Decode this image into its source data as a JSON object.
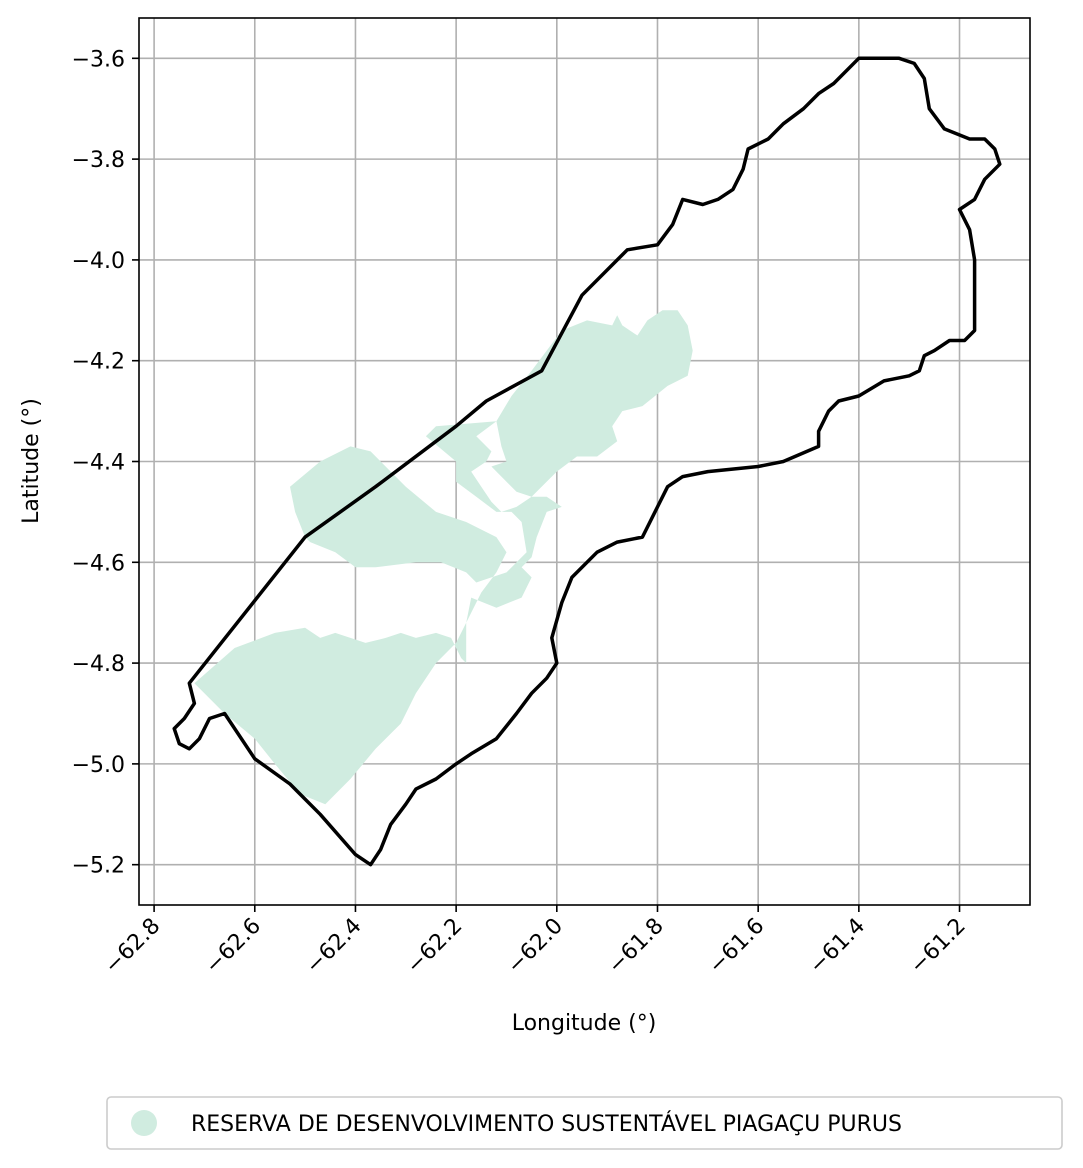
{
  "chart_data": {
    "type": "map",
    "xlabel": "Longitude (°)",
    "ylabel": "Latitude (°)",
    "xlim": [
      -62.83,
      -61.06
    ],
    "ylim": [
      -5.28,
      -3.52
    ],
    "grid": true,
    "x_ticks": [
      {
        "value": -62.8,
        "label": "−62.8"
      },
      {
        "value": -62.6,
        "label": "−62.6"
      },
      {
        "value": -62.4,
        "label": "−62.4"
      },
      {
        "value": -62.2,
        "label": "−62.2"
      },
      {
        "value": -62.0,
        "label": "−62.0"
      },
      {
        "value": -61.8,
        "label": "−61.8"
      },
      {
        "value": -61.6,
        "label": "−61.6"
      },
      {
        "value": -61.4,
        "label": "−61.4"
      },
      {
        "value": -61.2,
        "label": "−61.2"
      }
    ],
    "y_ticks": [
      {
        "value": -3.6,
        "label": "−3.6"
      },
      {
        "value": -3.8,
        "label": "−3.8"
      },
      {
        "value": -4.0,
        "label": "−4.0"
      },
      {
        "value": -4.2,
        "label": "−4.2"
      },
      {
        "value": -4.4,
        "label": "−4.4"
      },
      {
        "value": -4.6,
        "label": "−4.6"
      },
      {
        "value": -4.8,
        "label": "−4.8"
      },
      {
        "value": -5.0,
        "label": "−5.0"
      },
      {
        "value": -5.2,
        "label": "−5.2"
      }
    ],
    "legend": {
      "placement": "bottom-center",
      "entries": [
        {
          "label": "RESERVA DE DESENVOLVIMENTO SUSTENTÁVEL PIAGAÇU PURUS",
          "color": "#d0ece0",
          "marker": "circle"
        }
      ]
    },
    "colors": {
      "fill": "#d0ece0",
      "outline": "#000000",
      "grid": "#b0b0b0"
    },
    "reserve_polygon": [
      [
        -62.72,
        -4.84
      ],
      [
        -62.64,
        -4.77
      ],
      [
        -62.56,
        -4.74
      ],
      [
        -62.5,
        -4.73
      ],
      [
        -62.47,
        -4.75
      ],
      [
        -62.44,
        -4.74
      ],
      [
        -62.41,
        -4.75
      ],
      [
        -62.38,
        -4.76
      ],
      [
        -62.34,
        -4.75
      ],
      [
        -62.31,
        -4.74
      ],
      [
        -62.28,
        -4.75
      ],
      [
        -62.24,
        -4.74
      ],
      [
        -62.21,
        -4.75
      ],
      [
        -62.19,
        -4.79
      ],
      [
        -62.18,
        -4.8
      ],
      [
        -62.18,
        -4.72
      ],
      [
        -62.17,
        -4.67
      ],
      [
        -62.12,
        -4.69
      ],
      [
        -62.07,
        -4.67
      ],
      [
        -62.05,
        -4.63
      ],
      [
        -62.07,
        -4.61
      ],
      [
        -62.05,
        -4.59
      ],
      [
        -62.04,
        -4.55
      ],
      [
        -62.02,
        -4.5
      ],
      [
        -61.99,
        -4.49
      ],
      [
        -62.02,
        -4.47
      ],
      [
        -62.05,
        -4.47
      ],
      [
        -62.08,
        -4.46
      ],
      [
        -62.1,
        -4.44
      ],
      [
        -62.13,
        -4.41
      ],
      [
        -62.1,
        -4.4
      ],
      [
        -62.11,
        -4.37
      ],
      [
        -62.12,
        -4.32
      ],
      [
        -62.09,
        -4.27
      ],
      [
        -62.05,
        -4.22
      ],
      [
        -62.02,
        -4.18
      ],
      [
        -61.99,
        -4.14
      ],
      [
        -61.94,
        -4.12
      ],
      [
        -61.89,
        -4.13
      ],
      [
        -61.88,
        -4.11
      ],
      [
        -61.87,
        -4.13
      ],
      [
        -61.84,
        -4.15
      ],
      [
        -61.82,
        -4.12
      ],
      [
        -61.79,
        -4.1
      ],
      [
        -61.76,
        -4.1
      ],
      [
        -61.74,
        -4.13
      ],
      [
        -61.73,
        -4.18
      ],
      [
        -61.74,
        -4.23
      ],
      [
        -61.78,
        -4.25
      ],
      [
        -61.83,
        -4.29
      ],
      [
        -61.87,
        -4.3
      ],
      [
        -61.89,
        -4.33
      ],
      [
        -61.88,
        -4.36
      ],
      [
        -61.92,
        -4.39
      ],
      [
        -61.96,
        -4.39
      ],
      [
        -62.0,
        -4.42
      ],
      [
        -62.05,
        -4.47
      ],
      [
        -62.08,
        -4.49
      ],
      [
        -62.11,
        -4.5
      ],
      [
        -62.13,
        -4.48
      ],
      [
        -62.15,
        -4.45
      ],
      [
        -62.17,
        -4.42
      ],
      [
        -62.14,
        -4.4
      ],
      [
        -62.13,
        -4.38
      ],
      [
        -62.16,
        -4.35
      ],
      [
        -62.12,
        -4.32
      ],
      [
        -62.24,
        -4.33
      ],
      [
        -62.26,
        -4.35
      ],
      [
        -62.2,
        -4.4
      ],
      [
        -62.2,
        -4.44
      ],
      [
        -62.16,
        -4.47
      ],
      [
        -62.12,
        -4.5
      ],
      [
        -62.09,
        -4.5
      ],
      [
        -62.07,
        -4.52
      ],
      [
        -62.06,
        -4.58
      ],
      [
        -62.1,
        -4.62
      ],
      [
        -62.13,
        -4.63
      ],
      [
        -62.16,
        -4.64
      ],
      [
        -62.18,
        -4.62
      ],
      [
        -62.23,
        -4.6
      ],
      [
        -62.28,
        -4.6
      ],
      [
        -62.36,
        -4.61
      ],
      [
        -62.4,
        -4.61
      ],
      [
        -62.44,
        -4.58
      ],
      [
        -62.49,
        -4.56
      ],
      [
        -62.5,
        -4.55
      ],
      [
        -62.52,
        -4.5
      ],
      [
        -62.53,
        -4.45
      ],
      [
        -62.47,
        -4.4
      ],
      [
        -62.41,
        -4.37
      ],
      [
        -62.37,
        -4.38
      ],
      [
        -62.3,
        -4.45
      ],
      [
        -62.24,
        -4.5
      ],
      [
        -62.18,
        -4.52
      ],
      [
        -62.12,
        -4.55
      ],
      [
        -62.1,
        -4.58
      ],
      [
        -62.12,
        -4.62
      ],
      [
        -62.15,
        -4.66
      ],
      [
        -62.17,
        -4.7
      ],
      [
        -62.2,
        -4.76
      ],
      [
        -62.24,
        -4.8
      ],
      [
        -62.28,
        -4.86
      ],
      [
        -62.31,
        -4.92
      ],
      [
        -62.36,
        -4.97
      ],
      [
        -62.41,
        -5.03
      ],
      [
        -62.46,
        -5.08
      ],
      [
        -62.51,
        -5.06
      ],
      [
        -62.56,
        -5.0
      ],
      [
        -62.6,
        -4.95
      ],
      [
        -62.66,
        -4.9
      ],
      [
        -62.72,
        -4.84
      ]
    ],
    "boundary_polygon": [
      [
        -62.73,
        -4.84
      ],
      [
        -62.5,
        -4.55
      ],
      [
        -62.36,
        -4.45
      ],
      [
        -62.2,
        -4.33
      ],
      [
        -62.14,
        -4.28
      ],
      [
        -62.03,
        -4.22
      ],
      [
        -61.95,
        -4.07
      ],
      [
        -61.86,
        -3.98
      ],
      [
        -61.8,
        -3.97
      ],
      [
        -61.77,
        -3.93
      ],
      [
        -61.75,
        -3.88
      ],
      [
        -61.71,
        -3.89
      ],
      [
        -61.68,
        -3.88
      ],
      [
        -61.65,
        -3.86
      ],
      [
        -61.63,
        -3.82
      ],
      [
        -61.62,
        -3.78
      ],
      [
        -61.58,
        -3.76
      ],
      [
        -61.55,
        -3.73
      ],
      [
        -61.51,
        -3.7
      ],
      [
        -61.48,
        -3.67
      ],
      [
        -61.45,
        -3.65
      ],
      [
        -61.4,
        -3.6
      ],
      [
        -61.36,
        -3.6
      ],
      [
        -61.32,
        -3.6
      ],
      [
        -61.29,
        -3.61
      ],
      [
        -61.27,
        -3.64
      ],
      [
        -61.26,
        -3.7
      ],
      [
        -61.23,
        -3.74
      ],
      [
        -61.18,
        -3.76
      ],
      [
        -61.15,
        -3.76
      ],
      [
        -61.13,
        -3.78
      ],
      [
        -61.12,
        -3.81
      ],
      [
        -61.15,
        -3.84
      ],
      [
        -61.17,
        -3.88
      ],
      [
        -61.2,
        -3.9
      ],
      [
        -61.18,
        -3.94
      ],
      [
        -61.17,
        -4.0
      ],
      [
        -61.17,
        -4.14
      ],
      [
        -61.19,
        -4.16
      ],
      [
        -61.22,
        -4.16
      ],
      [
        -61.25,
        -4.18
      ],
      [
        -61.27,
        -4.19
      ],
      [
        -61.28,
        -4.22
      ],
      [
        -61.3,
        -4.23
      ],
      [
        -61.35,
        -4.24
      ],
      [
        -61.4,
        -4.27
      ],
      [
        -61.44,
        -4.28
      ],
      [
        -61.46,
        -4.3
      ],
      [
        -61.48,
        -4.34
      ],
      [
        -61.48,
        -4.37
      ],
      [
        -61.55,
        -4.4
      ],
      [
        -61.6,
        -4.41
      ],
      [
        -61.7,
        -4.42
      ],
      [
        -61.75,
        -4.43
      ],
      [
        -61.78,
        -4.45
      ],
      [
        -61.8,
        -4.49
      ],
      [
        -61.83,
        -4.55
      ],
      [
        -61.88,
        -4.56
      ],
      [
        -61.92,
        -4.58
      ],
      [
        -61.97,
        -4.63
      ],
      [
        -61.99,
        -4.68
      ],
      [
        -62.01,
        -4.75
      ],
      [
        -62.0,
        -4.8
      ],
      [
        -62.02,
        -4.83
      ],
      [
        -62.05,
        -4.86
      ],
      [
        -62.08,
        -4.9
      ],
      [
        -62.12,
        -4.95
      ],
      [
        -62.17,
        -4.98
      ],
      [
        -62.2,
        -5.0
      ],
      [
        -62.24,
        -5.03
      ],
      [
        -62.28,
        -5.05
      ],
      [
        -62.3,
        -5.08
      ],
      [
        -62.33,
        -5.12
      ],
      [
        -62.35,
        -5.17
      ],
      [
        -62.37,
        -5.2
      ],
      [
        -62.4,
        -5.18
      ],
      [
        -62.47,
        -5.1
      ],
      [
        -62.53,
        -5.04
      ],
      [
        -62.6,
        -4.99
      ],
      [
        -62.66,
        -4.9
      ],
      [
        -62.69,
        -4.91
      ],
      [
        -62.71,
        -4.95
      ],
      [
        -62.73,
        -4.97
      ],
      [
        -62.75,
        -4.96
      ],
      [
        -62.76,
        -4.93
      ],
      [
        -62.74,
        -4.91
      ],
      [
        -62.72,
        -4.88
      ],
      [
        -62.73,
        -4.84
      ]
    ]
  }
}
